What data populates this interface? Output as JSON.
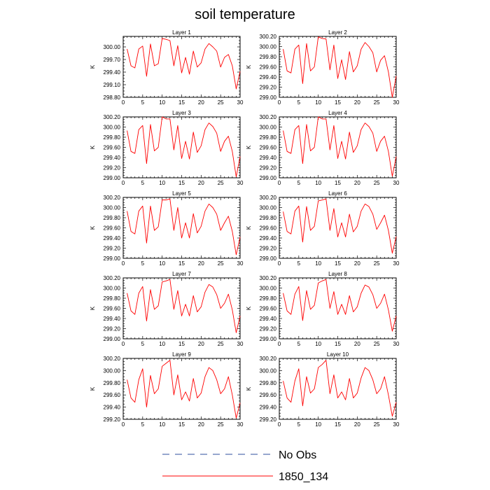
{
  "title": "soil temperature",
  "colors": {
    "model": "#ff0000",
    "obs": "#2c4f9e"
  },
  "legend": [
    {
      "label": "No Obs",
      "style": "dashed"
    },
    {
      "label": "1850_134",
      "style": "solid"
    }
  ],
  "chart_data": [
    {
      "type": "line",
      "title": "Layer 1",
      "ylabel": "K",
      "xlim": [
        0,
        30
      ],
      "ylim": [
        298.8,
        300.25
      ],
      "xticks": [
        0,
        5,
        10,
        15,
        20,
        25,
        30
      ],
      "yticks": [
        298.8,
        299.1,
        299.4,
        299.7,
        300.0
      ],
      "ytick_labels": [
        "298.80",
        "299.10",
        "299.40",
        "299.70",
        "300.00"
      ],
      "series": [
        {
          "name": "1850_134",
          "x": [
            1,
            2,
            3,
            4,
            5,
            6,
            7,
            8,
            9,
            10,
            11,
            12,
            13,
            14,
            15,
            16,
            17,
            18,
            19,
            20,
            21,
            22,
            23,
            24,
            25,
            26,
            27,
            28,
            29,
            30
          ],
          "values": [
            299.95,
            299.55,
            299.5,
            299.95,
            300.02,
            299.3,
            300.07,
            299.55,
            299.6,
            300.2,
            300.18,
            300.15,
            299.55,
            300.03,
            299.38,
            299.75,
            299.35,
            299.9,
            299.52,
            299.62,
            299.95,
            300.08,
            300.0,
            299.9,
            299.52,
            299.75,
            299.82,
            299.55,
            299.0,
            299.42
          ]
        }
      ]
    },
    {
      "type": "line",
      "title": "Layer 2",
      "ylabel": "K",
      "xlim": [
        0,
        30
      ],
      "ylim": [
        299.0,
        300.2
      ],
      "xticks": [
        0,
        5,
        10,
        15,
        20,
        25,
        30
      ],
      "yticks": [
        299.0,
        299.2,
        299.4,
        299.6,
        299.8,
        300.0,
        300.2
      ],
      "ytick_labels": [
        "299.00",
        "299.20",
        "299.40",
        "299.60",
        "299.80",
        "300.00",
        "300.20"
      ],
      "series": [
        {
          "name": "1850_134",
          "x": [
            1,
            2,
            3,
            4,
            5,
            6,
            7,
            8,
            9,
            10,
            11,
            12,
            13,
            14,
            15,
            16,
            17,
            18,
            19,
            20,
            21,
            22,
            23,
            24,
            25,
            26,
            27,
            28,
            29,
            30
          ],
          "values": [
            299.95,
            299.52,
            299.48,
            299.95,
            300.03,
            299.27,
            300.06,
            299.52,
            299.6,
            300.19,
            300.16,
            300.15,
            299.54,
            300.03,
            299.37,
            299.74,
            299.35,
            299.9,
            299.5,
            299.62,
            299.95,
            300.08,
            300.0,
            299.88,
            299.5,
            299.73,
            299.82,
            299.5,
            299.0,
            299.42
          ]
        }
      ]
    },
    {
      "type": "line",
      "title": "Layer 3",
      "ylabel": "K",
      "xlim": [
        0,
        30
      ],
      "ylim": [
        299.0,
        300.2
      ],
      "xticks": [
        0,
        5,
        10,
        15,
        20,
        25,
        30
      ],
      "yticks": [
        299.0,
        299.2,
        299.4,
        299.6,
        299.8,
        300.0,
        300.2
      ],
      "ytick_labels": [
        "299.00",
        "299.20",
        "299.40",
        "299.60",
        "299.80",
        "300.00",
        "300.20"
      ],
      "series": [
        {
          "name": "1850_134",
          "x": [
            1,
            2,
            3,
            4,
            5,
            6,
            7,
            8,
            9,
            10,
            11,
            12,
            13,
            14,
            15,
            16,
            17,
            18,
            19,
            20,
            21,
            22,
            23,
            24,
            25,
            26,
            27,
            28,
            29,
            30
          ],
          "values": [
            299.93,
            299.52,
            299.48,
            299.95,
            300.03,
            299.28,
            300.05,
            299.53,
            299.6,
            300.2,
            300.16,
            300.16,
            299.55,
            300.03,
            299.38,
            299.72,
            299.37,
            299.9,
            299.5,
            299.63,
            299.95,
            300.08,
            300.01,
            299.88,
            299.52,
            299.72,
            299.82,
            299.52,
            299.02,
            299.42
          ]
        }
      ]
    },
    {
      "type": "line",
      "title": "Layer 4",
      "ylabel": "K",
      "xlim": [
        0,
        30
      ],
      "ylim": [
        299.0,
        300.2
      ],
      "xticks": [
        0,
        5,
        10,
        15,
        20,
        25,
        30
      ],
      "yticks": [
        299.0,
        299.2,
        299.4,
        299.6,
        299.8,
        300.0,
        300.2
      ],
      "ytick_labels": [
        "299.00",
        "299.20",
        "299.40",
        "299.60",
        "299.80",
        "300.00",
        "300.20"
      ],
      "series": [
        {
          "name": "1850_134",
          "x": [
            1,
            2,
            3,
            4,
            5,
            6,
            7,
            8,
            9,
            10,
            11,
            12,
            13,
            14,
            15,
            16,
            17,
            18,
            19,
            20,
            21,
            22,
            23,
            24,
            25,
            26,
            27,
            28,
            29,
            30
          ],
          "values": [
            299.93,
            299.52,
            299.48,
            299.95,
            300.03,
            299.28,
            300.05,
            299.53,
            299.6,
            300.2,
            300.16,
            300.16,
            299.55,
            300.03,
            299.38,
            299.72,
            299.37,
            299.9,
            299.5,
            299.63,
            299.95,
            300.08,
            300.01,
            299.88,
            299.52,
            299.72,
            299.82,
            299.52,
            299.03,
            299.42
          ]
        }
      ]
    },
    {
      "type": "line",
      "title": "Layer 5",
      "ylabel": "K",
      "xlim": [
        0,
        30
      ],
      "ylim": [
        299.0,
        300.2
      ],
      "xticks": [
        0,
        5,
        10,
        15,
        20,
        25,
        30
      ],
      "yticks": [
        299.0,
        299.2,
        299.4,
        299.6,
        299.8,
        300.0,
        300.2
      ],
      "ytick_labels": [
        "299.00",
        "299.20",
        "299.40",
        "299.60",
        "299.80",
        "300.00",
        "300.20"
      ],
      "series": [
        {
          "name": "1850_134",
          "x": [
            1,
            2,
            3,
            4,
            5,
            6,
            7,
            8,
            9,
            10,
            11,
            12,
            13,
            14,
            15,
            16,
            17,
            18,
            19,
            20,
            21,
            22,
            23,
            24,
            25,
            26,
            27,
            28,
            29,
            30
          ],
          "values": [
            299.93,
            299.53,
            299.48,
            299.93,
            300.03,
            299.3,
            300.03,
            299.55,
            299.62,
            300.15,
            300.15,
            300.17,
            299.55,
            300.0,
            299.4,
            299.7,
            299.4,
            299.88,
            299.5,
            299.63,
            299.93,
            300.07,
            300.0,
            299.87,
            299.55,
            299.7,
            299.83,
            299.53,
            299.07,
            299.42
          ]
        }
      ]
    },
    {
      "type": "line",
      "title": "Layer 6",
      "ylabel": "K",
      "xlim": [
        0,
        30
      ],
      "ylim": [
        299.0,
        300.2
      ],
      "xticks": [
        0,
        5,
        10,
        15,
        20,
        25,
        30
      ],
      "yticks": [
        299.0,
        299.2,
        299.4,
        299.6,
        299.8,
        300.0,
        300.2
      ],
      "ytick_labels": [
        "299.00",
        "299.20",
        "299.40",
        "299.60",
        "299.80",
        "300.00",
        "300.20"
      ],
      "series": [
        {
          "name": "1850_134",
          "x": [
            1,
            2,
            3,
            4,
            5,
            6,
            7,
            8,
            9,
            10,
            11,
            12,
            13,
            14,
            15,
            16,
            17,
            18,
            19,
            20,
            21,
            22,
            23,
            24,
            25,
            26,
            27,
            28,
            29,
            30
          ],
          "values": [
            299.92,
            299.53,
            299.48,
            299.93,
            300.03,
            299.32,
            300.02,
            299.55,
            299.63,
            300.13,
            300.15,
            300.17,
            299.55,
            299.98,
            299.42,
            299.7,
            299.42,
            299.87,
            299.52,
            299.63,
            299.93,
            300.07,
            300.02,
            299.87,
            299.57,
            299.7,
            299.85,
            299.55,
            299.1,
            299.43
          ]
        }
      ]
    },
    {
      "type": "line",
      "title": "Layer 7",
      "ylabel": "K",
      "xlim": [
        0,
        30
      ],
      "ylim": [
        299.0,
        300.2
      ],
      "xticks": [
        0,
        5,
        10,
        15,
        20,
        25,
        30
      ],
      "yticks": [
        299.0,
        299.2,
        299.4,
        299.6,
        299.8,
        300.0,
        300.2
      ],
      "ytick_labels": [
        "299.00",
        "299.20",
        "299.40",
        "299.60",
        "299.80",
        "300.00",
        "300.20"
      ],
      "series": [
        {
          "name": "1850_134",
          "x": [
            1,
            2,
            3,
            4,
            5,
            6,
            7,
            8,
            9,
            10,
            11,
            12,
            13,
            14,
            15,
            16,
            17,
            18,
            19,
            20,
            21,
            22,
            23,
            24,
            25,
            26,
            27,
            28,
            29,
            30
          ],
          "values": [
            299.9,
            299.55,
            299.48,
            299.9,
            300.03,
            299.35,
            299.97,
            299.58,
            299.65,
            300.12,
            300.14,
            300.17,
            299.58,
            299.95,
            299.45,
            299.68,
            299.45,
            299.85,
            299.53,
            299.63,
            299.92,
            300.07,
            300.02,
            299.87,
            299.6,
            299.7,
            299.88,
            299.57,
            299.12,
            299.45
          ]
        }
      ]
    },
    {
      "type": "line",
      "title": "Layer 8",
      "ylabel": "K",
      "xlim": [
        0,
        30
      ],
      "ylim": [
        299.0,
        300.2
      ],
      "xticks": [
        0,
        5,
        10,
        15,
        20,
        25,
        30
      ],
      "yticks": [
        299.0,
        299.2,
        299.4,
        299.6,
        299.8,
        300.0,
        300.2
      ],
      "ytick_labels": [
        "299.00",
        "299.20",
        "299.40",
        "299.60",
        "299.80",
        "300.00",
        "300.20"
      ],
      "series": [
        {
          "name": "1850_134",
          "x": [
            1,
            2,
            3,
            4,
            5,
            6,
            7,
            8,
            9,
            10,
            11,
            12,
            13,
            14,
            15,
            16,
            17,
            18,
            19,
            20,
            21,
            22,
            23,
            24,
            25,
            26,
            27,
            28,
            29,
            30
          ],
          "values": [
            299.9,
            299.55,
            299.48,
            299.88,
            300.03,
            299.36,
            299.95,
            299.58,
            299.66,
            300.1,
            300.14,
            300.17,
            299.6,
            299.93,
            299.48,
            299.68,
            299.48,
            299.85,
            299.53,
            299.63,
            299.9,
            300.06,
            300.02,
            299.87,
            299.6,
            299.7,
            299.88,
            299.57,
            299.15,
            299.45
          ]
        }
      ]
    },
    {
      "type": "line",
      "title": "Layer 9",
      "ylabel": "K",
      "xlim": [
        0,
        30
      ],
      "ylim": [
        299.2,
        300.2
      ],
      "xticks": [
        0,
        5,
        10,
        15,
        20,
        25,
        30
      ],
      "yticks": [
        299.2,
        299.4,
        299.6,
        299.8,
        300.0,
        300.2
      ],
      "ytick_labels": [
        "299.20",
        "299.40",
        "299.60",
        "299.80",
        "300.00",
        "300.20"
      ],
      "series": [
        {
          "name": "1850_134",
          "x": [
            1,
            2,
            3,
            4,
            5,
            6,
            7,
            8,
            9,
            10,
            11,
            12,
            13,
            14,
            15,
            16,
            17,
            18,
            19,
            20,
            21,
            22,
            23,
            24,
            25,
            26,
            27,
            28,
            29,
            30
          ],
          "values": [
            299.85,
            299.55,
            299.48,
            299.85,
            300.03,
            299.4,
            299.92,
            299.62,
            299.7,
            300.07,
            300.12,
            300.17,
            299.6,
            299.93,
            299.52,
            299.65,
            299.5,
            299.87,
            299.55,
            299.63,
            299.9,
            300.05,
            300.0,
            299.85,
            299.62,
            299.7,
            299.9,
            299.6,
            299.22,
            299.47
          ]
        }
      ]
    },
    {
      "type": "line",
      "title": "Layer 10",
      "ylabel": "K",
      "xlim": [
        0,
        30
      ],
      "ylim": [
        299.2,
        300.2
      ],
      "xticks": [
        0,
        5,
        10,
        15,
        20,
        25,
        30
      ],
      "yticks": [
        299.2,
        299.4,
        299.6,
        299.8,
        300.0,
        300.2
      ],
      "ytick_labels": [
        "299.20",
        "299.40",
        "299.60",
        "299.80",
        "300.00",
        "300.20"
      ],
      "series": [
        {
          "name": "1850_134",
          "x": [
            1,
            2,
            3,
            4,
            5,
            6,
            7,
            8,
            9,
            10,
            11,
            12,
            13,
            14,
            15,
            16,
            17,
            18,
            19,
            20,
            21,
            22,
            23,
            24,
            25,
            26,
            27,
            28,
            29,
            30
          ],
          "values": [
            299.83,
            299.55,
            299.48,
            299.83,
            300.03,
            299.42,
            299.9,
            299.63,
            299.7,
            300.05,
            300.1,
            300.17,
            299.62,
            299.93,
            299.55,
            299.65,
            299.52,
            299.87,
            299.55,
            299.63,
            299.88,
            300.05,
            300.0,
            299.85,
            299.62,
            299.7,
            299.9,
            299.6,
            299.25,
            299.48
          ]
        }
      ]
    }
  ]
}
